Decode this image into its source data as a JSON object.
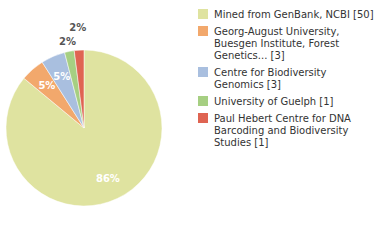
{
  "chart_data": {
    "type": "pie",
    "categories": [
      "Mined from GenBank, NCBI [50]",
      "Georg-August University, Buesgen Institute, Forest Genetics... [3]",
      "Centre for Biodiversity Genomics [3]",
      "University of Guelph [1]",
      "Paul Hebert Centre for DNA Barcoding and Biodiversity Studies [1]"
    ],
    "values": [
      86,
      5,
      5,
      2,
      2
    ],
    "value_labels": [
      "86%",
      "5%",
      "5%",
      "2%",
      "2%"
    ],
    "colors": [
      "#dfe3a0",
      "#f2a86c",
      "#a9bfdf",
      "#a6cf82",
      "#df6452"
    ],
    "data_labels": true
  }
}
